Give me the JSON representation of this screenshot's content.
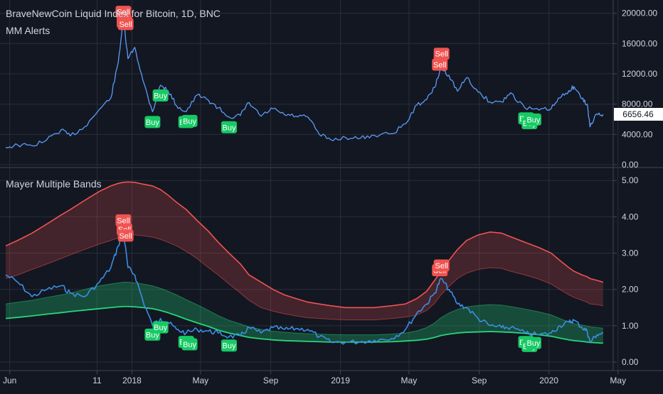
{
  "header": {
    "symbol_title": "BraveNewCoin Liquid Index for Bitcoin, 1D, BNC",
    "indicator_title": "MM Alerts"
  },
  "lower_pane": {
    "title": "Mayer Multiple Bands"
  },
  "colors": {
    "background": "#131722",
    "grid": "#2a2e39",
    "text": "#d1d4dc",
    "price_line": "#5b9cf6",
    "mm_line": "#3a8ee6",
    "upper_band": "#f05350",
    "lower_band": "#26d67a",
    "sell": "#f05350",
    "buy": "#17c964"
  },
  "chart_data": [
    {
      "type": "line",
      "title": "BraveNewCoin Liquid Index for Bitcoin, 1D, BNC",
      "ylim": [
        0,
        21000
      ],
      "y_ticks": [
        "0.00",
        "4000.00",
        "8000.00",
        "12000.00",
        "16000.00",
        "20000.00"
      ],
      "last_value_label": "6656.46",
      "x": [
        "2017-05-25",
        "2017-06-15",
        "2017-07-10",
        "2017-08-05",
        "2017-08-30",
        "2017-09-15",
        "2017-10-10",
        "2017-11-05",
        "2017-11-25",
        "2017-12-08",
        "2017-12-17",
        "2017-12-25",
        "2018-01-06",
        "2018-01-20",
        "2018-02-06",
        "2018-02-20",
        "2018-03-05",
        "2018-03-20",
        "2018-04-06",
        "2018-04-25",
        "2018-05-15",
        "2018-06-01",
        "2018-06-20",
        "2018-07-10",
        "2018-07-25",
        "2018-08-15",
        "2018-09-05",
        "2018-09-25",
        "2018-10-15",
        "2018-11-05",
        "2018-11-25",
        "2018-12-15",
        "2019-01-10",
        "2019-02-05",
        "2019-03-01",
        "2019-04-01",
        "2019-04-25",
        "2019-05-15",
        "2019-06-01",
        "2019-06-15",
        "2019-06-26",
        "2019-07-10",
        "2019-07-25",
        "2019-08-10",
        "2019-08-30",
        "2019-09-20",
        "2019-10-10",
        "2019-10-26",
        "2019-11-20",
        "2019-12-15",
        "2020-01-05",
        "2020-01-20",
        "2020-02-05",
        "2020-02-14",
        "2020-02-28",
        "2020-03-08",
        "2020-03-13",
        "2020-03-25",
        "2020-04-05"
      ],
      "y": [
        2300,
        2600,
        2500,
        3300,
        4600,
        3800,
        5000,
        7300,
        8800,
        13500,
        19300,
        14000,
        15500,
        11200,
        7000,
        10500,
        9800,
        7800,
        7000,
        9200,
        8500,
        7500,
        6300,
        6500,
        8200,
        6400,
        7400,
        6600,
        6400,
        6300,
        4000,
        3300,
        3600,
        3500,
        3900,
        4100,
        5400,
        7900,
        8600,
        10200,
        12800,
        11800,
        9700,
        11500,
        9600,
        8300,
        8300,
        9500,
        7500,
        7200,
        7400,
        8800,
        9800,
        10300,
        8700,
        8000,
        5000,
        6700,
        6656
      ]
    },
    {
      "type": "line",
      "title": "Mayer Multiple Bands",
      "ylim": [
        0,
        5.2
      ],
      "y_ticks": [
        "0.00",
        "1.00",
        "2.00",
        "3.00",
        "4.00",
        "5.00"
      ],
      "x_ticks": [
        "Jun",
        "11",
        "2018",
        "May",
        "Sep",
        "2019",
        "May",
        "Sep",
        "2020",
        "May"
      ],
      "x_tick_dates": [
        "2017-06-01",
        "2017-11-01",
        "2018-01-01",
        "2018-05-01",
        "2018-09-01",
        "2019-01-01",
        "2019-05-01",
        "2019-09-01",
        "2020-01-01",
        "2020-05-01"
      ],
      "x": [
        "2017-05-25",
        "2017-06-15",
        "2017-07-10",
        "2017-08-05",
        "2017-08-30",
        "2017-09-15",
        "2017-10-10",
        "2017-11-05",
        "2017-11-25",
        "2017-12-08",
        "2017-12-17",
        "2017-12-25",
        "2018-01-06",
        "2018-01-20",
        "2018-02-06",
        "2018-02-20",
        "2018-03-05",
        "2018-03-20",
        "2018-04-06",
        "2018-04-25",
        "2018-05-15",
        "2018-06-01",
        "2018-06-20",
        "2018-07-10",
        "2018-07-25",
        "2018-08-15",
        "2018-09-05",
        "2018-09-25",
        "2018-10-15",
        "2018-11-05",
        "2018-11-25",
        "2018-12-15",
        "2019-01-10",
        "2019-02-05",
        "2019-03-01",
        "2019-04-01",
        "2019-04-25",
        "2019-05-15",
        "2019-06-01",
        "2019-06-15",
        "2019-06-26",
        "2019-07-10",
        "2019-07-25",
        "2019-08-10",
        "2019-08-30",
        "2019-09-20",
        "2019-10-10",
        "2019-10-26",
        "2019-11-20",
        "2019-12-15",
        "2020-01-05",
        "2020-01-20",
        "2020-02-05",
        "2020-02-14",
        "2020-02-28",
        "2020-03-08",
        "2020-03-13",
        "2020-03-25",
        "2020-04-05"
      ],
      "series": [
        {
          "role": "mayer_multiple",
          "values": [
            2.4,
            2.2,
            1.8,
            2.0,
            2.1,
            1.9,
            1.8,
            2.2,
            2.6,
            3.2,
            3.6,
            2.6,
            2.4,
            1.7,
            1.0,
            1.2,
            1.1,
            0.9,
            0.8,
            0.9,
            0.85,
            0.8,
            0.7,
            0.72,
            0.95,
            0.8,
            0.95,
            0.9,
            0.92,
            0.9,
            0.7,
            0.55,
            0.55,
            0.56,
            0.6,
            0.65,
            0.9,
            1.35,
            1.6,
            1.9,
            2.3,
            2.0,
            1.6,
            1.5,
            1.2,
            1.0,
            0.95,
            0.95,
            0.8,
            0.75,
            0.8,
            1.0,
            1.1,
            1.15,
            0.95,
            0.85,
            0.55,
            0.75,
            0.8
          ]
        },
        {
          "role": "upper_band",
          "values": [
            3.2,
            3.35,
            3.55,
            3.8,
            4.05,
            4.2,
            4.45,
            4.7,
            4.85,
            4.92,
            4.95,
            4.96,
            4.95,
            4.9,
            4.85,
            4.75,
            4.6,
            4.4,
            4.2,
            3.9,
            3.6,
            3.3,
            3.0,
            2.7,
            2.4,
            2.2,
            2.0,
            1.85,
            1.75,
            1.65,
            1.6,
            1.55,
            1.5,
            1.5,
            1.5,
            1.55,
            1.6,
            1.75,
            1.95,
            2.25,
            2.5,
            2.8,
            3.1,
            3.35,
            3.5,
            3.58,
            3.55,
            3.45,
            3.3,
            3.15,
            3.0,
            2.8,
            2.6,
            2.5,
            2.4,
            2.35,
            2.3,
            2.25,
            2.2
          ]
        },
        {
          "role": "upper_band_lower_edge",
          "values": [
            2.3,
            2.4,
            2.55,
            2.7,
            2.85,
            2.95,
            3.1,
            3.25,
            3.35,
            3.42,
            3.48,
            3.5,
            3.5,
            3.48,
            3.44,
            3.38,
            3.3,
            3.2,
            3.05,
            2.85,
            2.6,
            2.4,
            2.15,
            1.9,
            1.7,
            1.5,
            1.4,
            1.33,
            1.27,
            1.22,
            1.2,
            1.18,
            1.16,
            1.16,
            1.16,
            1.2,
            1.24,
            1.3,
            1.42,
            1.62,
            1.85,
            2.08,
            2.3,
            2.45,
            2.55,
            2.6,
            2.58,
            2.5,
            2.4,
            2.28,
            2.15,
            2.0,
            1.85,
            1.78,
            1.7,
            1.65,
            1.6,
            1.58,
            1.55
          ]
        },
        {
          "role": "lower_band_upper_edge",
          "values": [
            1.6,
            1.65,
            1.7,
            1.78,
            1.85,
            1.9,
            2.0,
            2.1,
            2.15,
            2.18,
            2.2,
            2.2,
            2.18,
            2.15,
            2.1,
            2.03,
            1.95,
            1.85,
            1.72,
            1.58,
            1.42,
            1.28,
            1.15,
            1.05,
            0.97,
            0.9,
            0.85,
            0.82,
            0.8,
            0.78,
            0.77,
            0.76,
            0.75,
            0.75,
            0.75,
            0.77,
            0.8,
            0.86,
            0.95,
            1.08,
            1.22,
            1.35,
            1.45,
            1.52,
            1.56,
            1.58,
            1.57,
            1.53,
            1.46,
            1.38,
            1.3,
            1.2,
            1.1,
            1.06,
            1.02,
            0.99,
            0.97,
            0.95,
            0.93
          ]
        },
        {
          "role": "lower_band",
          "values": [
            1.2,
            1.23,
            1.27,
            1.32,
            1.36,
            1.39,
            1.43,
            1.47,
            1.5,
            1.52,
            1.53,
            1.53,
            1.52,
            1.5,
            1.47,
            1.42,
            1.36,
            1.28,
            1.18,
            1.08,
            0.98,
            0.88,
            0.8,
            0.73,
            0.68,
            0.64,
            0.61,
            0.59,
            0.58,
            0.57,
            0.56,
            0.55,
            0.55,
            0.55,
            0.55,
            0.56,
            0.58,
            0.6,
            0.63,
            0.68,
            0.73,
            0.77,
            0.8,
            0.82,
            0.83,
            0.84,
            0.83,
            0.82,
            0.79,
            0.75,
            0.71,
            0.66,
            0.61,
            0.59,
            0.57,
            0.55,
            0.54,
            0.53,
            0.52
          ]
        }
      ]
    }
  ],
  "signals": [
    {
      "date": "2017-12-17",
      "type": "sell",
      "label": "Sell"
    },
    {
      "date": "2017-12-19",
      "type": "sell",
      "label": "Sell"
    },
    {
      "date": "2017-12-21",
      "type": "sell",
      "label": "Sell"
    },
    {
      "date": "2018-02-06",
      "type": "buy",
      "label": "Buy"
    },
    {
      "date": "2018-02-20",
      "type": "buy",
      "label": "Buy"
    },
    {
      "date": "2018-04-06",
      "type": "buy",
      "label": "Buy"
    },
    {
      "date": "2018-04-12",
      "type": "buy",
      "label": "Buy"
    },
    {
      "date": "2018-06-20",
      "type": "buy",
      "label": "Buy"
    },
    {
      "date": "2019-06-24",
      "type": "sell",
      "label": "Sell"
    },
    {
      "date": "2019-06-27",
      "type": "sell",
      "label": "Sell"
    },
    {
      "date": "2019-11-22",
      "type": "buy",
      "label": "Buy"
    },
    {
      "date": "2019-11-28",
      "type": "buy",
      "label": "Buy"
    },
    {
      "date": "2019-12-05",
      "type": "buy",
      "label": "Buy"
    }
  ]
}
